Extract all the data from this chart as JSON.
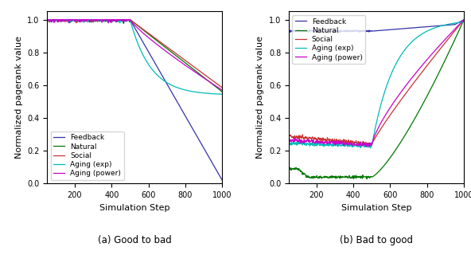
{
  "feedback_color": "#3333aa",
  "natural_color": "#007700",
  "social_color": "#cc3333",
  "aging_exp_color": "#00bbbb",
  "aging_power_color": "#cc00cc",
  "xlabel": "Simulation Step",
  "ylabel": "Normalized pagerank value",
  "caption_a": "(a) Good to bad",
  "caption_b": "(b) Bad to good",
  "xlim": [
    50,
    1000
  ],
  "ylim": [
    0.0,
    1.05
  ],
  "xticks": [
    200,
    400,
    600,
    800,
    1000
  ],
  "yticks": [
    0.0,
    0.2,
    0.4,
    0.6,
    0.8,
    1.0
  ],
  "transition_step": 500,
  "legend_labels": [
    "Feedback",
    "Natural",
    "Social",
    "Aging (exp)",
    "Aging (power)"
  ]
}
